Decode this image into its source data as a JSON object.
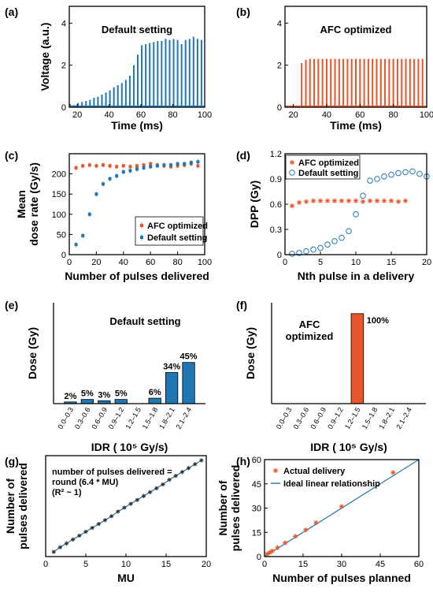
{
  "colors": {
    "blue": "#1f77b4",
    "orange": "#e8552a",
    "axis": "#000000"
  },
  "chart_data": [
    {
      "id": "a",
      "type": "line",
      "panel_label": "(a)",
      "title": "Default setting",
      "xlabel": "Time (ms)",
      "ylabel": "Voltage (a.u.)",
      "xlim": [
        15,
        100
      ],
      "ylim": [
        0,
        4.8
      ],
      "xticks": [
        20,
        40,
        60,
        80,
        100
      ],
      "yticks": [
        0,
        2,
        4
      ],
      "pulse_times": [
        15.5,
        18.0,
        20.5,
        23.0,
        25.5,
        28.0,
        30.5,
        33.0,
        35.5,
        38.0,
        40.5,
        43.0,
        45.5,
        48.0,
        50.5,
        53.0,
        55.5,
        58.0,
        60.5,
        63.0,
        65.5,
        68.0,
        70.5,
        73.0,
        75.5,
        78.0,
        80.5,
        83.0,
        85.5,
        88.0,
        90.5,
        93.0,
        95.5,
        98.0
      ],
      "pulse_heights": [
        0.15,
        0.1,
        0.2,
        0.25,
        0.3,
        0.35,
        0.45,
        0.5,
        0.6,
        0.7,
        0.8,
        0.95,
        1.05,
        1.15,
        1.3,
        1.5,
        2.0,
        2.5,
        2.95,
        3.0,
        3.05,
        3.1,
        3.15,
        3.15,
        3.25,
        3.2,
        3.25,
        3.2,
        3.0,
        3.2,
        3.25,
        3.35,
        3.25,
        3.2
      ],
      "series": [
        {
          "color": "#1f77b4"
        }
      ]
    },
    {
      "id": "b",
      "type": "line",
      "panel_label": "(b)",
      "title": "AFC optimized",
      "xlabel": "Time (ms)",
      "ylabel": "",
      "xlim": [
        15,
        100
      ],
      "ylim": [
        0,
        4.8
      ],
      "xticks": [
        20,
        40,
        60,
        80,
        100
      ],
      "yticks": [
        0,
        2,
        4
      ],
      "pulse_times": [
        25.0,
        27.5,
        30.0,
        32.5,
        35.0,
        37.5,
        40.0,
        42.5,
        45.0,
        47.5,
        50.0,
        52.5,
        55.0,
        57.5,
        60.0,
        62.5,
        65.0,
        67.5,
        70.0,
        72.5,
        75.0,
        77.5,
        80.0,
        82.5,
        85.0,
        87.5,
        90.0,
        92.5,
        95.0,
        97.5
      ],
      "pulse_heights": [
        2.1,
        2.25,
        2.3,
        2.3,
        2.3,
        2.3,
        2.3,
        2.3,
        2.3,
        2.3,
        2.3,
        2.3,
        2.3,
        2.3,
        2.3,
        2.3,
        2.3,
        2.3,
        2.3,
        2.3,
        2.3,
        2.3,
        2.3,
        2.3,
        2.3,
        2.3,
        2.3,
        2.3,
        2.3,
        2.3
      ],
      "series": [
        {
          "color": "#e8552a"
        }
      ]
    },
    {
      "id": "c",
      "type": "scatter",
      "panel_label": "(c)",
      "xlabel": "Number of pulses delivered",
      "ylabel": [
        "Mean",
        "dose rate (Gy/s)"
      ],
      "xlim": [
        0,
        100
      ],
      "ylim": [
        0,
        250
      ],
      "xticks": [
        0,
        20,
        40,
        60,
        80,
        100
      ],
      "yticks": [
        0,
        50,
        100,
        150,
        200
      ],
      "legend": {
        "placement": "bottom-right"
      },
      "series": [
        {
          "name": "AFC optimized",
          "color": "#e8552a",
          "x": [
            5,
            10,
            15,
            20,
            25,
            30,
            35,
            40,
            45,
            50,
            55,
            60,
            65,
            70,
            75,
            80,
            85,
            90,
            95
          ],
          "y": [
            215,
            220,
            222,
            220,
            222,
            220,
            218,
            220,
            218,
            220,
            222,
            225,
            222,
            220,
            218,
            220,
            222,
            225,
            220
          ]
        },
        {
          "name": "Default setting",
          "color": "#1f77b4",
          "x": [
            5,
            10,
            15,
            20,
            25,
            30,
            35,
            40,
            45,
            50,
            55,
            60,
            65,
            70,
            75,
            80,
            85,
            90,
            95
          ],
          "y": [
            25,
            47,
            100,
            150,
            175,
            188,
            195,
            205,
            208,
            212,
            215,
            218,
            220,
            222,
            222,
            225,
            225,
            228,
            230
          ]
        }
      ]
    },
    {
      "id": "d",
      "type": "scatter",
      "panel_label": "(d)",
      "xlabel": "Nth pulse in a delivery",
      "ylabel": "DPP (Gy)",
      "xlim": [
        0,
        20
      ],
      "ylim": [
        0,
        1.2
      ],
      "xticks": [
        0,
        5,
        10,
        15,
        20
      ],
      "yticks": [
        0,
        0.3,
        0.6,
        0.9,
        1.2
      ],
      "ytick_labels": [
        "0",
        "0.3",
        "0.6",
        "0.9",
        "1.2"
      ],
      "legend": {
        "placement": "top-left"
      },
      "series": [
        {
          "name": "AFC optimized",
          "color": "#e8552a",
          "marker": "asterisk",
          "x": [
            1,
            2,
            3,
            4,
            5,
            6,
            7,
            8,
            9,
            10,
            11,
            12,
            13,
            14,
            15,
            16,
            17
          ],
          "y": [
            0.58,
            0.62,
            0.63,
            0.64,
            0.64,
            0.64,
            0.64,
            0.64,
            0.64,
            0.64,
            0.63,
            0.64,
            0.64,
            0.64,
            0.64,
            0.63,
            0.64
          ]
        },
        {
          "name": "Default setting",
          "color": "#1f77b4",
          "marker": "circle",
          "x": [
            1,
            2,
            3,
            4,
            5,
            6,
            7,
            8,
            9,
            10,
            11,
            12,
            13,
            14,
            15,
            16,
            17,
            18,
            19,
            20
          ],
          "y": [
            0.01,
            0.02,
            0.04,
            0.06,
            0.08,
            0.12,
            0.16,
            0.2,
            0.28,
            0.48,
            0.7,
            0.88,
            0.9,
            0.93,
            0.95,
            0.97,
            0.98,
            0.99,
            0.96,
            0.93
          ]
        }
      ]
    },
    {
      "id": "e",
      "type": "bar",
      "panel_label": "(e)",
      "title": "Default setting",
      "xlabel": "IDR (  10⁵ Gy/s)",
      "ylabel": "Dose (Gy)",
      "categories": [
        "0.0–0.3",
        "0.3–0.6",
        "0.6–0.9",
        "0.9–1.2",
        "1.2–1.5",
        "1.5–1.8",
        "1.8–2.1",
        "2.1–2.4"
      ],
      "values": [
        0.2,
        0.5,
        0.35,
        0.5,
        0.0,
        0.65,
        3.7,
        4.9
      ],
      "labels": [
        "2%",
        "5%",
        "3%",
        "5%",
        "",
        "6%",
        "34%",
        "45%"
      ],
      "ylim": [
        0,
        12
      ],
      "series": [
        {
          "color": "#1f77b4"
        }
      ]
    },
    {
      "id": "f",
      "type": "bar",
      "panel_label": "(f)",
      "title": [
        "AFC",
        "optimized"
      ],
      "xlabel": "IDR (  10⁵ Gy/s)",
      "ylabel": "Dose (Gy)",
      "categories": [
        "0.0–0.3",
        "0.3–0.6",
        "0.6–0.9",
        "0.9–1.2",
        "1.2–1.5",
        "1.5–1.8",
        "1.8–2.1",
        "2.1–2.4"
      ],
      "values": [
        0,
        0,
        0,
        0,
        10.7,
        0,
        0,
        0
      ],
      "labels": [
        "",
        "",
        "",
        "",
        "100%",
        "",
        "",
        ""
      ],
      "ylim": [
        0,
        12
      ],
      "series": [
        {
          "color": "#e8552a"
        }
      ]
    },
    {
      "id": "g",
      "type": "line",
      "panel_label": "(g)",
      "xlabel": "MU",
      "ylabel": [
        "Number of",
        "pulses delivered"
      ],
      "xlim": [
        0,
        20
      ],
      "ylim": [
        0,
        130
      ],
      "xticks": [
        0,
        5,
        10,
        15,
        20
      ],
      "yticks": [],
      "annotation": [
        "number of pulses delivered =",
        "round (6.4 * MU)",
        "(R² ~ 1)"
      ],
      "series": [
        {
          "color": "#1f77b4",
          "x": [
            1,
            1.8,
            2.6,
            3.4,
            4.2,
            5.0,
            5.8,
            6.6,
            7.4,
            8.2,
            9.0,
            9.8,
            10.6,
            11.4,
            12.2,
            13.0,
            13.8,
            14.6,
            15.4,
            16.2,
            17.0,
            17.8,
            18.6,
            19.4
          ],
          "y": [
            6,
            12,
            17,
            22,
            27,
            32,
            37,
            42,
            47,
            52,
            58,
            63,
            68,
            73,
            78,
            83,
            88,
            93,
            99,
            104,
            109,
            114,
            119,
            124
          ]
        }
      ]
    },
    {
      "id": "h",
      "type": "scatter",
      "panel_label": "(h)",
      "xlabel": "Number of pulses planned",
      "ylabel": [
        "Number of",
        "pulses delivered"
      ],
      "xlim": [
        0,
        60
      ],
      "ylim": [
        0,
        60
      ],
      "xticks": [
        0,
        15,
        30,
        45,
        60
      ],
      "yticks": [
        0,
        15,
        30,
        45,
        60
      ],
      "legend": {
        "placement": "top-left"
      },
      "series": [
        {
          "name": "Actual delivery",
          "color": "#e8552a",
          "marker": "asterisk",
          "x": [
            1,
            2,
            3,
            5,
            8,
            12,
            16,
            20,
            30,
            50
          ],
          "y": [
            1.5,
            2.5,
            3.5,
            5.5,
            8.5,
            12.5,
            16.5,
            21,
            31,
            52
          ]
        },
        {
          "name": "Ideal linear relationship",
          "color": "#1f77b4",
          "type": "line",
          "x": [
            0,
            60
          ],
          "y": [
            0,
            60
          ]
        }
      ]
    }
  ]
}
